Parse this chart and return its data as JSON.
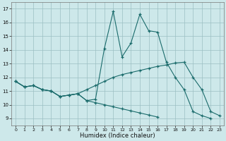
{
  "xlabel": "Humidex (Indice chaleur)",
  "ylabel": "",
  "xlim": [
    -0.5,
    23.5
  ],
  "ylim": [
    8.5,
    17.5
  ],
  "yticks": [
    9,
    10,
    11,
    12,
    13,
    14,
    15,
    16,
    17
  ],
  "xticks": [
    0,
    1,
    2,
    3,
    4,
    5,
    6,
    7,
    8,
    9,
    10,
    11,
    12,
    13,
    14,
    15,
    16,
    17,
    18,
    19,
    20,
    21,
    22,
    23
  ],
  "bg_color": "#cde8ea",
  "line_color": "#1a6b6b",
  "grid_color": "#9bbfc2",
  "line1": [
    11.7,
    11.3,
    11.4,
    11.1,
    11.0,
    10.6,
    10.7,
    10.8,
    10.3,
    10.4,
    14.1,
    16.8,
    13.5,
    14.5,
    16.6,
    15.4,
    15.3,
    13.1,
    12.0,
    11.1,
    9.5,
    9.2,
    9.0,
    null
  ],
  "line2": [
    11.7,
    11.3,
    11.4,
    11.1,
    11.0,
    10.6,
    10.7,
    10.8,
    11.1,
    11.4,
    11.7,
    12.0,
    12.2,
    12.35,
    12.5,
    12.65,
    12.8,
    12.9,
    13.05,
    13.1,
    12.0,
    11.1,
    9.5,
    9.2
  ],
  "line3": [
    11.7,
    11.3,
    11.4,
    11.1,
    11.0,
    10.6,
    10.7,
    10.8,
    10.3,
    10.15,
    10.0,
    9.85,
    9.7,
    9.55,
    9.4,
    9.25,
    9.1,
    null,
    null,
    null,
    null,
    null,
    null,
    null
  ]
}
